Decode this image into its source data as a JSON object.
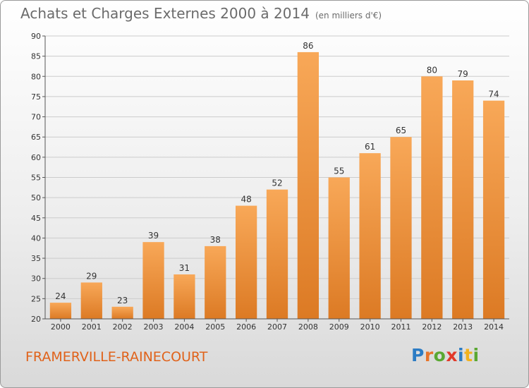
{
  "chart_data": {
    "type": "bar",
    "title": "Achats et Charges Externes 2000 à 2014",
    "unit": "(en milliers d'€)",
    "categories": [
      "2000",
      "2001",
      "2002",
      "2003",
      "2004",
      "2005",
      "2006",
      "2007",
      "2008",
      "2009",
      "2010",
      "2011",
      "2012",
      "2013",
      "2014"
    ],
    "values": [
      24,
      29,
      23,
      39,
      31,
      38,
      48,
      52,
      86,
      55,
      61,
      65,
      80,
      79,
      74
    ],
    "ylim": [
      20,
      90
    ],
    "yticks": [
      20,
      25,
      30,
      35,
      40,
      45,
      50,
      55,
      60,
      65,
      70,
      75,
      80,
      85,
      90
    ],
    "xlabel": "",
    "ylabel": "",
    "grid": true,
    "colors": {
      "bar_light": "#f8a858",
      "bar_dark": "#dc7a24",
      "grid": "#cccccc"
    }
  },
  "footer": {
    "commune": "FRAMERVILLE-RAINECOURT",
    "logo_letters": [
      {
        "ch": "P",
        "color": "#2c7cc4"
      },
      {
        "ch": "r",
        "color": "#e8742a"
      },
      {
        "ch": "o",
        "color": "#5aa832"
      },
      {
        "ch": "x",
        "color": "#e23a2a"
      },
      {
        "ch": "i",
        "color": "#2c7cc4"
      },
      {
        "ch": "t",
        "color": "#f2b21e"
      },
      {
        "ch": "i",
        "color": "#5aa832"
      }
    ]
  }
}
